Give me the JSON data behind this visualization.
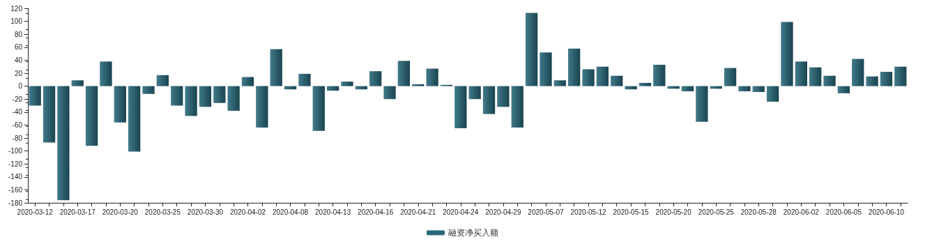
{
  "chart_data": {
    "type": "bar",
    "categories": [
      "2020-03-12",
      null,
      null,
      "2020-03-17",
      null,
      null,
      "2020-03-20",
      null,
      null,
      "2020-03-25",
      null,
      null,
      "2020-03-30",
      null,
      null,
      "2020-04-02",
      null,
      null,
      "2020-04-08",
      null,
      null,
      "2020-04-13",
      null,
      null,
      "2020-04-16",
      null,
      null,
      "2020-04-21",
      null,
      null,
      "2020-04-24",
      null,
      null,
      "2020-04-29",
      null,
      null,
      "2020-05-07",
      null,
      null,
      "2020-05-12",
      null,
      null,
      "2020-05-15",
      null,
      null,
      "2020-05-20",
      null,
      null,
      "2020-05-25",
      null,
      null,
      "2020-05-28",
      null,
      null,
      "2020-06-02",
      null,
      null,
      "2020-06-05",
      null,
      null,
      "2020-06-10",
      null
    ],
    "series": [
      {
        "name": "融资净买入额",
        "color": "#27687a",
        "values": [
          -30,
          -87,
          -176,
          9,
          -92,
          38,
          -56,
          -101,
          -12,
          17,
          -30,
          -46,
          -32,
          -26,
          -38,
          14,
          -64,
          57,
          -5,
          19,
          -69,
          -7,
          7,
          -5,
          23,
          -20,
          39,
          3,
          27,
          2,
          -65,
          -20,
          -43,
          -32,
          -64,
          113,
          52,
          9,
          58,
          26,
          30,
          16,
          -5,
          5,
          33,
          -4,
          -8,
          -55,
          -4,
          28,
          -8,
          -9,
          -24,
          99,
          38,
          29,
          16,
          -11,
          42,
          15,
          22,
          30
        ]
      }
    ],
    "ylim": [
      -180,
      120
    ],
    "yticks": [
      -180,
      -160,
      -140,
      -120,
      -100,
      -80,
      -60,
      -40,
      -20,
      0,
      20,
      40,
      60,
      80,
      100,
      120
    ],
    "grid": false,
    "legend": "bottom"
  }
}
